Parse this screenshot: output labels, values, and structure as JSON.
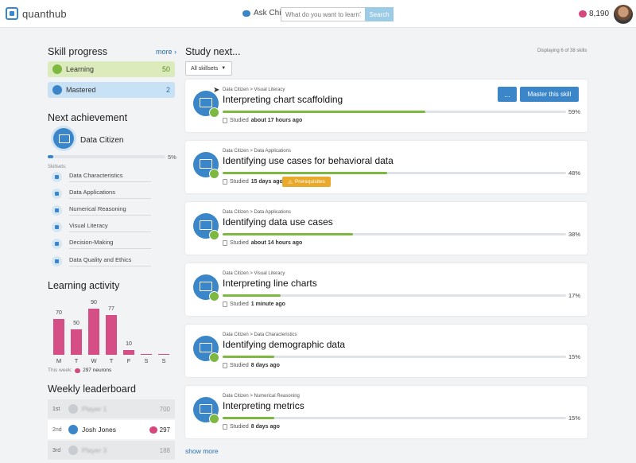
{
  "header": {
    "logo_text": "quanthub",
    "ask_label": "Ask Chip",
    "search_placeholder": "What do you want to learn?",
    "search_button": "Search",
    "neuron_count": "8,190"
  },
  "skill_progress": {
    "title": "Skill progress",
    "more": "more ›",
    "learning_label": "Learning",
    "learning_count": "50",
    "mastered_label": "Mastered",
    "mastered_count": "2"
  },
  "achievement": {
    "title": "Next achievement",
    "name": "Data Citizen",
    "progress": 5,
    "progress_label": "5%",
    "skills_label": "Skillsets:",
    "skills": [
      "Data Characteristics",
      "Data Applications",
      "Numerical Reasoning",
      "Visual Literacy",
      "Decision-Making",
      "Data Quality and Ethics"
    ]
  },
  "learning_activity": {
    "title": "Learning activity",
    "week_note": "This week:",
    "week_neurons": "297 neurons",
    "chart_data": {
      "type": "bar",
      "categories": [
        "M",
        "T",
        "W",
        "T",
        "F",
        "S",
        "S"
      ],
      "values": [
        70,
        50,
        90,
        77,
        10,
        0,
        0
      ],
      "value_labels": [
        "70",
        "50",
        "90",
        "77",
        "10",
        "",
        ""
      ],
      "ylim": [
        0,
        100
      ],
      "color": "#d54f86"
    }
  },
  "leaderboard": {
    "title": "Weekly leaderboard",
    "rows": [
      {
        "rank": "1st",
        "name": "Player 1",
        "score": "700"
      },
      {
        "rank": "2nd",
        "name": "Josh Jones",
        "score": "297"
      },
      {
        "rank": "3rd",
        "name": "Player 3",
        "score": "188"
      }
    ]
  },
  "study": {
    "title": "Study next...",
    "displaying": "Displaying 6 of 38 skills",
    "filter": "All skillsets",
    "show_more": "show more",
    "dots_label": "...",
    "master_label": "Master this skill",
    "prereq_label": "Prerequisites",
    "studied_prefix": "Studied",
    "cards": [
      {
        "breadcrumb": "Data Citizen > Visual Literacy",
        "title": "Interpreting chart scaffolding",
        "progress": 59,
        "pct": "59%",
        "studied": "about 17 hours ago"
      },
      {
        "breadcrumb": "Data Citizen > Data Applications",
        "title": "Identifying use cases for behavioral data",
        "progress": 48,
        "pct": "48%",
        "studied": "15 days ago"
      },
      {
        "breadcrumb": "Data Citizen > Data Applications",
        "title": "Identifying data use cases",
        "progress": 38,
        "pct": "38%",
        "studied": "about 14 hours ago"
      },
      {
        "breadcrumb": "Data Citizen > Visual Literacy",
        "title": "Interpreting line charts",
        "progress": 17,
        "pct": "17%",
        "studied": "1 minute ago"
      },
      {
        "breadcrumb": "Data Citizen > Data Characteristics",
        "title": "Identifying demographic data",
        "progress": 15,
        "pct": "15%",
        "studied": "8 days ago"
      },
      {
        "breadcrumb": "Data Citizen > Numerical Reasoning",
        "title": "Interpreting metrics",
        "progress": 15,
        "pct": "15%",
        "studied": "8 days ago"
      }
    ]
  }
}
